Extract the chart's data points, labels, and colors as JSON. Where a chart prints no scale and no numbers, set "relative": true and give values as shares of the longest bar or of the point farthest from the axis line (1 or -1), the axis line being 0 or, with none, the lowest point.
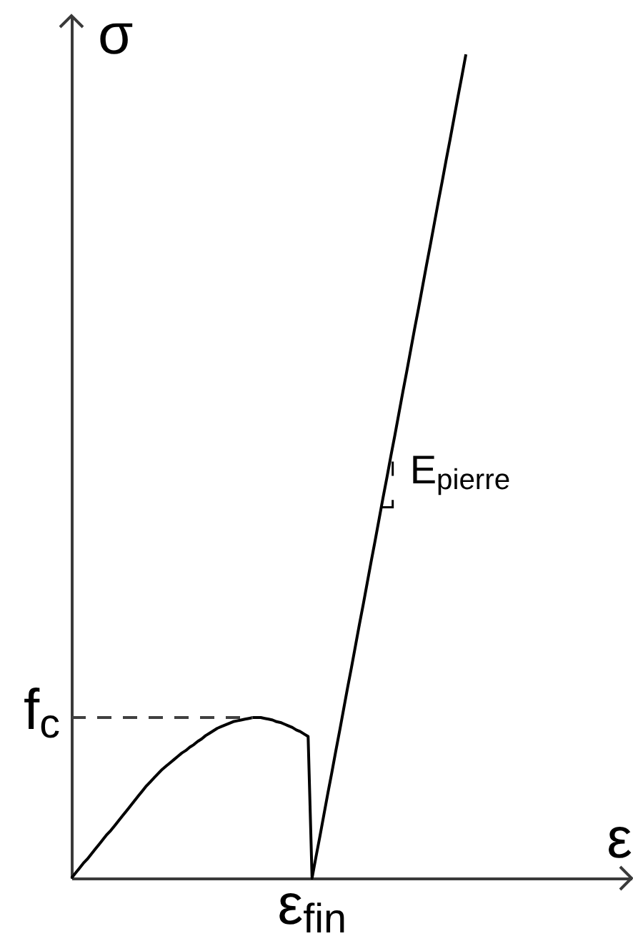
{
  "chart_data": {
    "type": "line",
    "relative": true,
    "xlabel": "ε",
    "ylabel": "σ",
    "categories": [
      null,
      null,
      null,
      null,
      null,
      null,
      null,
      null,
      null,
      null,
      null,
      null,
      null,
      null,
      null,
      null,
      null,
      null,
      null,
      null,
      null,
      null,
      null,
      null,
      null,
      null,
      null,
      null,
      null,
      null,
      null,
      null,
      null,
      null,
      null,
      null,
      null,
      null,
      null,
      null,
      null,
      null,
      null,
      null,
      null,
      null,
      null,
      null,
      null,
      null,
      null,
      null,
      null,
      null,
      null,
      null,
      null,
      null,
      null,
      null,
      null,
      null,
      null,
      null,
      null,
      null,
      null,
      null,
      null,
      null,
      null,
      null,
      null,
      null,
      null,
      null,
      null,
      null,
      null,
      null,
      null,
      null,
      null,
      null,
      null,
      null,
      null,
      null,
      null,
      null,
      null,
      null,
      null,
      null,
      null,
      null,
      null,
      null,
      null,
      null,
      null
    ],
    "series": [
      {
        "color": "#000000",
        "values": [
          0,
          0.006,
          0.012,
          0.018,
          0.023,
          0.029,
          0.035,
          0.041,
          0.047,
          0.053,
          0.058,
          0.064,
          0.07,
          0.076,
          0.082,
          0.088,
          0.094,
          0.1,
          0.106,
          0.112,
          0.117,
          0.122,
          0.127,
          0.132,
          0.136,
          0.14,
          0.144,
          0.148,
          0.152,
          0.155,
          0.159,
          0.162,
          0.166,
          0.169,
          0.173,
          0.176,
          0.179,
          0.182,
          0.184,
          0.186,
          0.188,
          0.19,
          0.191,
          0.192,
          0.193,
          0.194,
          0.195,
          0.195,
          0.195,
          0.194,
          0.193,
          0.192,
          0.19,
          0.189,
          0.187,
          0.185,
          0.183,
          0.18,
          0.178,
          0.175,
          0.172,
          0,
          0.026,
          0.051,
          0.077,
          0.103,
          0.128,
          0.154,
          0.179,
          0.205,
          0.231,
          0.256,
          0.282,
          0.308,
          0.333,
          0.359,
          0.385,
          0.41,
          0.436,
          0.462,
          0.487,
          0.513,
          0.538,
          0.564,
          0.59,
          0.615,
          0.641,
          0.667,
          0.692,
          0.718,
          0.744,
          0.769,
          0.795,
          0.821,
          0.846,
          0.872,
          0.897,
          0.923,
          0.949,
          0.974,
          1
        ]
      }
    ],
    "ref_lines": [
      {
        "axis": "y",
        "value": 0.195,
        "label": "f$_{c}$",
        "color": "#404040",
        "line_style": "dashed"
      }
    ],
    "annotations": [
      {
        "text": "ε$_{fin}$",
        "y": 0
      },
      "E$_{pierre}$"
    ]
  }
}
